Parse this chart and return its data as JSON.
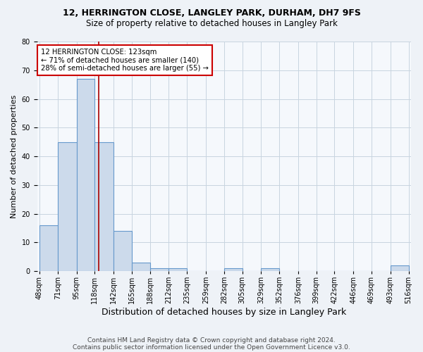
{
  "title1": "12, HERRINGTON CLOSE, LANGLEY PARK, DURHAM, DH7 9FS",
  "title2": "Size of property relative to detached houses in Langley Park",
  "xlabel": "Distribution of detached houses by size in Langley Park",
  "ylabel": "Number of detached properties",
  "bin_edges": [
    48,
    71,
    95,
    118,
    142,
    165,
    188,
    212,
    235,
    259,
    282,
    305,
    329,
    352,
    376,
    399,
    422,
    446,
    469,
    493,
    516
  ],
  "bar_heights": [
    16,
    45,
    67,
    45,
    14,
    3,
    1,
    1,
    0,
    0,
    1,
    0,
    1,
    0,
    0,
    0,
    0,
    0,
    0,
    2
  ],
  "bar_color": "#ccdaeb",
  "bar_edge_color": "#6699cc",
  "property_size": 123,
  "vline_color": "#aa0000",
  "annotation_text": "12 HERRINGTON CLOSE: 123sqm\n← 71% of detached houses are smaller (140)\n28% of semi-detached houses are larger (55) →",
  "annotation_box_color": "white",
  "annotation_box_edge_color": "#cc0000",
  "ylim": [
    0,
    80
  ],
  "yticks": [
    0,
    10,
    20,
    30,
    40,
    50,
    60,
    70,
    80
  ],
  "footer1": "Contains HM Land Registry data © Crown copyright and database right 2024.",
  "footer2": "Contains public sector information licensed under the Open Government Licence v3.0.",
  "bg_color": "#eef2f7",
  "plot_bg_color": "#f5f8fc",
  "grid_color": "#c8d4e0",
  "title1_fontsize": 9,
  "title2_fontsize": 8.5,
  "ylabel_fontsize": 8,
  "xlabel_fontsize": 9,
  "tick_fontsize": 7,
  "footer_fontsize": 6.5
}
